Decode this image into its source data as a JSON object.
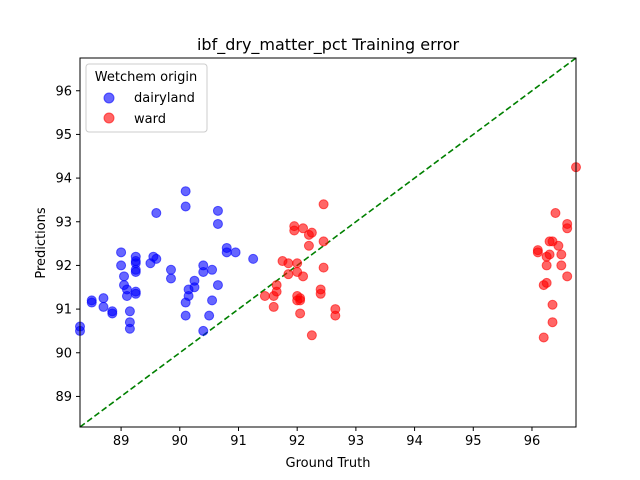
{
  "chart_data": {
    "type": "scatter",
    "title": "ibf_dry_matter_pct Training error",
    "xlabel": "Ground Truth",
    "ylabel": "Predictions",
    "xlim": [
      88.3,
      96.75
    ],
    "ylim": [
      88.3,
      96.75
    ],
    "xticks": [
      89,
      90,
      91,
      92,
      93,
      94,
      95,
      96
    ],
    "yticks": [
      89,
      90,
      91,
      92,
      93,
      94,
      95,
      96
    ],
    "grid": false,
    "legend": {
      "title": "Wetchem origin",
      "placement": "top-left"
    },
    "reference_line": {
      "type": "identity",
      "style": "dashed",
      "color": "#008000"
    },
    "series": [
      {
        "name": "dairyland",
        "color": "#0000ff",
        "points": [
          [
            88.3,
            90.5
          ],
          [
            88.3,
            90.6
          ],
          [
            88.5,
            91.2
          ],
          [
            88.5,
            91.15
          ],
          [
            88.7,
            91.25
          ],
          [
            88.7,
            91.05
          ],
          [
            88.85,
            90.95
          ],
          [
            88.85,
            90.9
          ],
          [
            89.0,
            92.3
          ],
          [
            89.0,
            92.0
          ],
          [
            89.05,
            91.75
          ],
          [
            89.05,
            91.55
          ],
          [
            89.1,
            91.45
          ],
          [
            89.1,
            91.3
          ],
          [
            89.15,
            90.95
          ],
          [
            89.15,
            90.7
          ],
          [
            89.15,
            90.55
          ],
          [
            89.25,
            92.2
          ],
          [
            89.25,
            92.1
          ],
          [
            89.25,
            92.05
          ],
          [
            89.25,
            91.9
          ],
          [
            89.25,
            91.85
          ],
          [
            89.25,
            91.4
          ],
          [
            89.25,
            91.35
          ],
          [
            89.5,
            92.05
          ],
          [
            89.55,
            92.2
          ],
          [
            89.6,
            93.2
          ],
          [
            89.6,
            92.15
          ],
          [
            89.85,
            91.9
          ],
          [
            89.85,
            91.7
          ],
          [
            90.1,
            93.7
          ],
          [
            90.1,
            93.35
          ],
          [
            90.1,
            91.15
          ],
          [
            90.1,
            90.85
          ],
          [
            90.15,
            91.45
          ],
          [
            90.15,
            91.3
          ],
          [
            90.25,
            91.65
          ],
          [
            90.25,
            91.5
          ],
          [
            90.4,
            92.0
          ],
          [
            90.4,
            91.85
          ],
          [
            90.4,
            90.5
          ],
          [
            90.5,
            90.85
          ],
          [
            90.55,
            91.9
          ],
          [
            90.55,
            91.2
          ],
          [
            90.65,
            93.25
          ],
          [
            90.65,
            92.95
          ],
          [
            90.65,
            91.55
          ],
          [
            90.8,
            92.4
          ],
          [
            90.8,
            92.3
          ],
          [
            90.95,
            92.3
          ],
          [
            91.25,
            92.15
          ]
        ]
      },
      {
        "name": "ward",
        "color": "#ff0000",
        "points": [
          [
            91.45,
            91.3
          ],
          [
            91.6,
            91.05
          ],
          [
            91.6,
            91.3
          ],
          [
            91.65,
            91.55
          ],
          [
            91.65,
            91.4
          ],
          [
            91.75,
            92.1
          ],
          [
            91.85,
            92.05
          ],
          [
            91.85,
            91.8
          ],
          [
            91.95,
            92.9
          ],
          [
            91.95,
            92.8
          ],
          [
            92.0,
            92.05
          ],
          [
            92.0,
            91.85
          ],
          [
            92.0,
            91.3
          ],
          [
            92.0,
            91.2
          ],
          [
            92.05,
            91.2
          ],
          [
            92.05,
            91.25
          ],
          [
            92.05,
            90.9
          ],
          [
            92.1,
            92.85
          ],
          [
            92.1,
            91.75
          ],
          [
            92.2,
            92.45
          ],
          [
            92.2,
            92.7
          ],
          [
            92.25,
            92.75
          ],
          [
            92.25,
            90.4
          ],
          [
            92.4,
            91.45
          ],
          [
            92.4,
            91.35
          ],
          [
            92.45,
            93.4
          ],
          [
            92.45,
            92.55
          ],
          [
            92.45,
            91.95
          ],
          [
            92.65,
            91.0
          ],
          [
            92.65,
            90.85
          ],
          [
            96.1,
            92.35
          ],
          [
            96.1,
            92.3
          ],
          [
            96.2,
            91.55
          ],
          [
            96.2,
            90.35
          ],
          [
            96.25,
            92.2
          ],
          [
            96.25,
            92.0
          ],
          [
            96.25,
            91.6
          ],
          [
            96.3,
            92.55
          ],
          [
            96.3,
            92.25
          ],
          [
            96.35,
            92.55
          ],
          [
            96.35,
            91.1
          ],
          [
            96.35,
            90.7
          ],
          [
            96.4,
            93.2
          ],
          [
            96.45,
            92.45
          ],
          [
            96.5,
            92.25
          ],
          [
            96.5,
            92.0
          ],
          [
            96.6,
            92.95
          ],
          [
            96.6,
            92.85
          ],
          [
            96.6,
            91.75
          ],
          [
            96.75,
            94.25
          ]
        ]
      }
    ]
  }
}
